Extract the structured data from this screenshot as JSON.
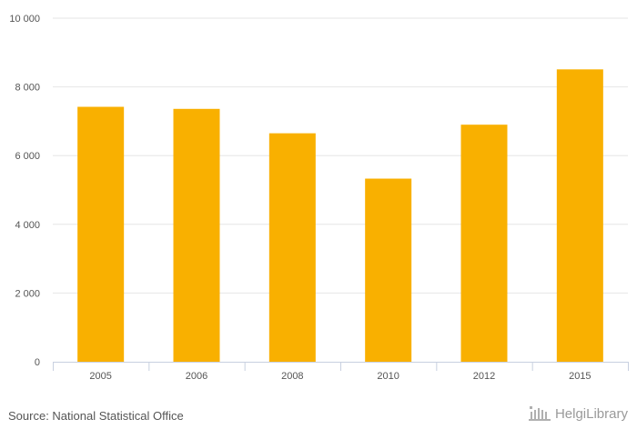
{
  "chart_data": {
    "type": "bar",
    "categories": [
      "2005",
      "2006",
      "2008",
      "2010",
      "2012",
      "2015"
    ],
    "values": [
      7420,
      7360,
      6650,
      5330,
      6900,
      8510
    ],
    "yticks": [
      "0",
      "2 000",
      "4 000",
      "6 000",
      "8 000",
      "10 000"
    ],
    "ylim": [
      0,
      10000
    ],
    "grid": true,
    "bar_color": "#F9B000"
  },
  "footer": {
    "source": "Source: National Statistical Office",
    "logo_text": "HelgiLibrary"
  }
}
